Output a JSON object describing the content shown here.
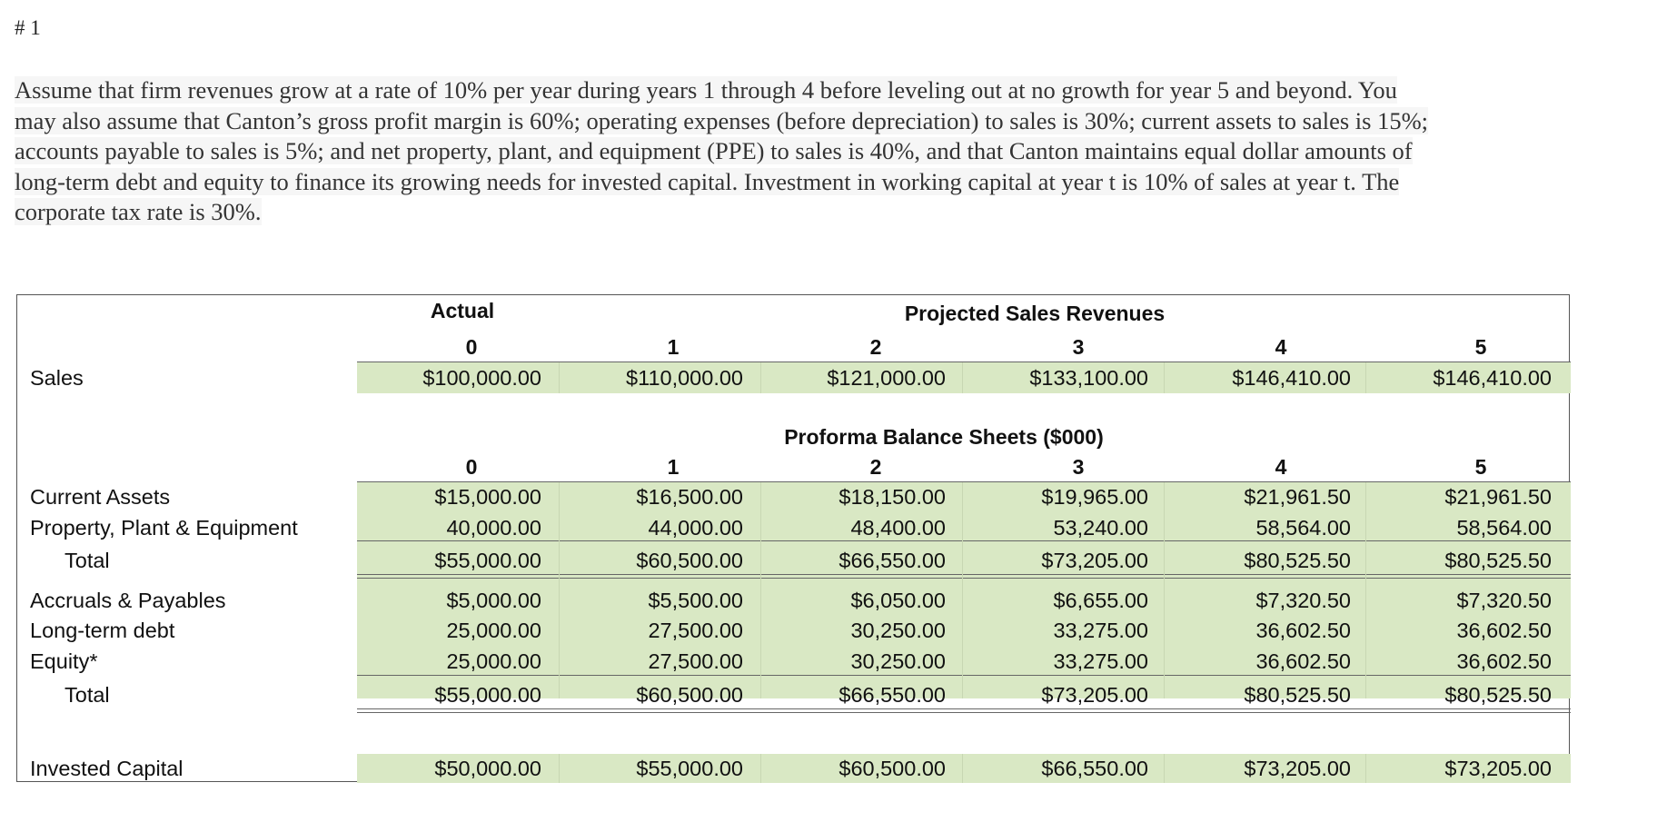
{
  "heading": "# 1",
  "paragraph": [
    "Assume that firm revenues grow at a rate of 10% per year during years 1 through 4 before leveling out at no growth for year 5 and beyond. You",
    "may also assume that Canton’s gross profit margin is 60%; operating expenses (before depreciation) to sales is 30%; current assets to sales is 15%;",
    "accounts payable to sales is 5%; and net property, plant, and equipment (PPE) to sales is 40%, and that Canton maintains equal dollar amounts of",
    "long-term debt and equity to finance its growing needs for invested capital. Investment in working capital at year t is 10% of sales at year t. The",
    "corporate tax rate is 30%."
  ],
  "table": {
    "actual_label": "Actual",
    "projected_title": "Projected Sales Revenues",
    "balance_title": "Proforma Balance Sheets ($000)",
    "years": [
      "0",
      "1",
      "2",
      "3",
      "4",
      "5"
    ],
    "sales": {
      "label": "Sales",
      "values": [
        "$100,000.00",
        "$110,000.00",
        "$121,000.00",
        "$133,100.00",
        "$146,410.00",
        "$146,410.00"
      ]
    },
    "assets": [
      {
        "label": "Current Assets",
        "values": [
          "$15,000.00",
          "$16,500.00",
          "$18,150.00",
          "$19,965.00",
          "$21,961.50",
          "$21,961.50"
        ]
      },
      {
        "label": "Property, Plant & Equipment",
        "values": [
          "40,000.00",
          "44,000.00",
          "48,400.00",
          "53,240.00",
          "58,564.00",
          "58,564.00"
        ]
      }
    ],
    "assets_total": {
      "label": "Total",
      "values": [
        "$55,000.00",
        "$60,500.00",
        "$66,550.00",
        "$73,205.00",
        "$80,525.50",
        "$80,525.50"
      ]
    },
    "liabilities": [
      {
        "label": "Accruals & Payables",
        "values": [
          "$5,000.00",
          "$5,500.00",
          "$6,050.00",
          "$6,655.00",
          "$7,320.50",
          "$7,320.50"
        ]
      },
      {
        "label": "Long-term debt",
        "values": [
          "25,000.00",
          "27,500.00",
          "30,250.00",
          "33,275.00",
          "36,602.50",
          "36,602.50"
        ]
      },
      {
        "label": "Equity*",
        "values": [
          "25,000.00",
          "27,500.00",
          "30,250.00",
          "33,275.00",
          "36,602.50",
          "36,602.50"
        ]
      }
    ],
    "liabilities_total": {
      "label": "Total",
      "values": [
        "$55,000.00",
        "$60,500.00",
        "$66,550.00",
        "$73,205.00",
        "$80,525.50",
        "$80,525.50"
      ]
    },
    "invested_capital": {
      "label": "Invested Capital",
      "values": [
        "$50,000.00",
        "$55,000.00",
        "$60,500.00",
        "$66,550.00",
        "$73,205.00",
        "$73,205.00"
      ]
    }
  }
}
